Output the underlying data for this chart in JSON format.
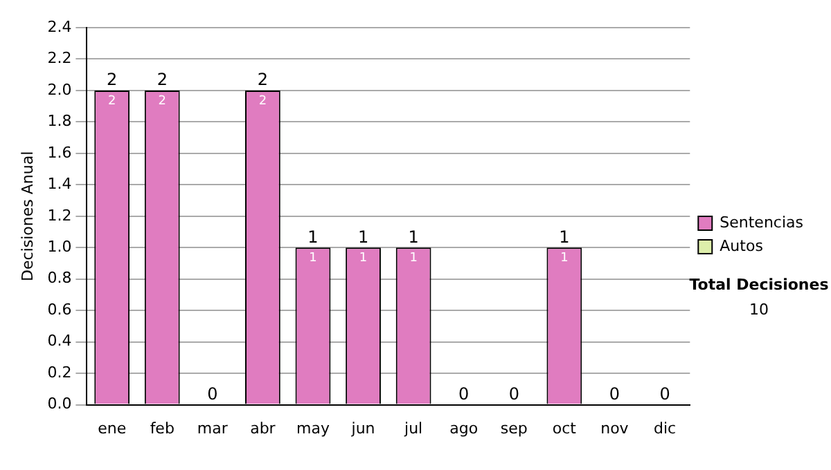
{
  "chart_data": {
    "type": "bar",
    "stacked": true,
    "ylabel": "Decisiones Anual",
    "categories": [
      "ene",
      "feb",
      "mar",
      "abr",
      "may",
      "jun",
      "jul",
      "ago",
      "sep",
      "oct",
      "nov",
      "dic"
    ],
    "series": [
      {
        "name": "Sentencias",
        "color": "#e07cc0",
        "values": [
          2,
          2,
          0,
          2,
          1,
          1,
          1,
          0,
          0,
          1,
          0,
          0
        ],
        "value_labels": [
          "2",
          "2",
          null,
          "2",
          "1",
          "1",
          "1",
          null,
          null,
          "1",
          null,
          null
        ]
      },
      {
        "name": "Autos",
        "color": "#ddeeaa",
        "values": [
          0,
          0,
          0,
          0,
          0,
          0,
          0,
          0,
          0,
          0,
          0,
          0
        ],
        "value_labels": [
          null,
          null,
          null,
          null,
          null,
          null,
          null,
          null,
          null,
          null,
          null,
          null
        ]
      }
    ],
    "totals": [
      "2",
      "2",
      "0",
      "2",
      "1",
      "1",
      "1",
      "0",
      "0",
      "1",
      "0",
      "0"
    ],
    "ylim": [
      0,
      2.4
    ],
    "yticks": [
      {
        "value": 0,
        "label": "0.0"
      },
      0.2,
      0.4,
      0.6,
      0.8,
      {
        "value": 1,
        "label": "1.0"
      },
      1.2,
      1.4,
      1.6,
      1.8,
      {
        "value": 2,
        "label": "2.0"
      },
      2.2,
      2.4
    ],
    "grid": "y",
    "legend": "right",
    "annotations": [
      "Total Decisiones",
      "10"
    ]
  }
}
